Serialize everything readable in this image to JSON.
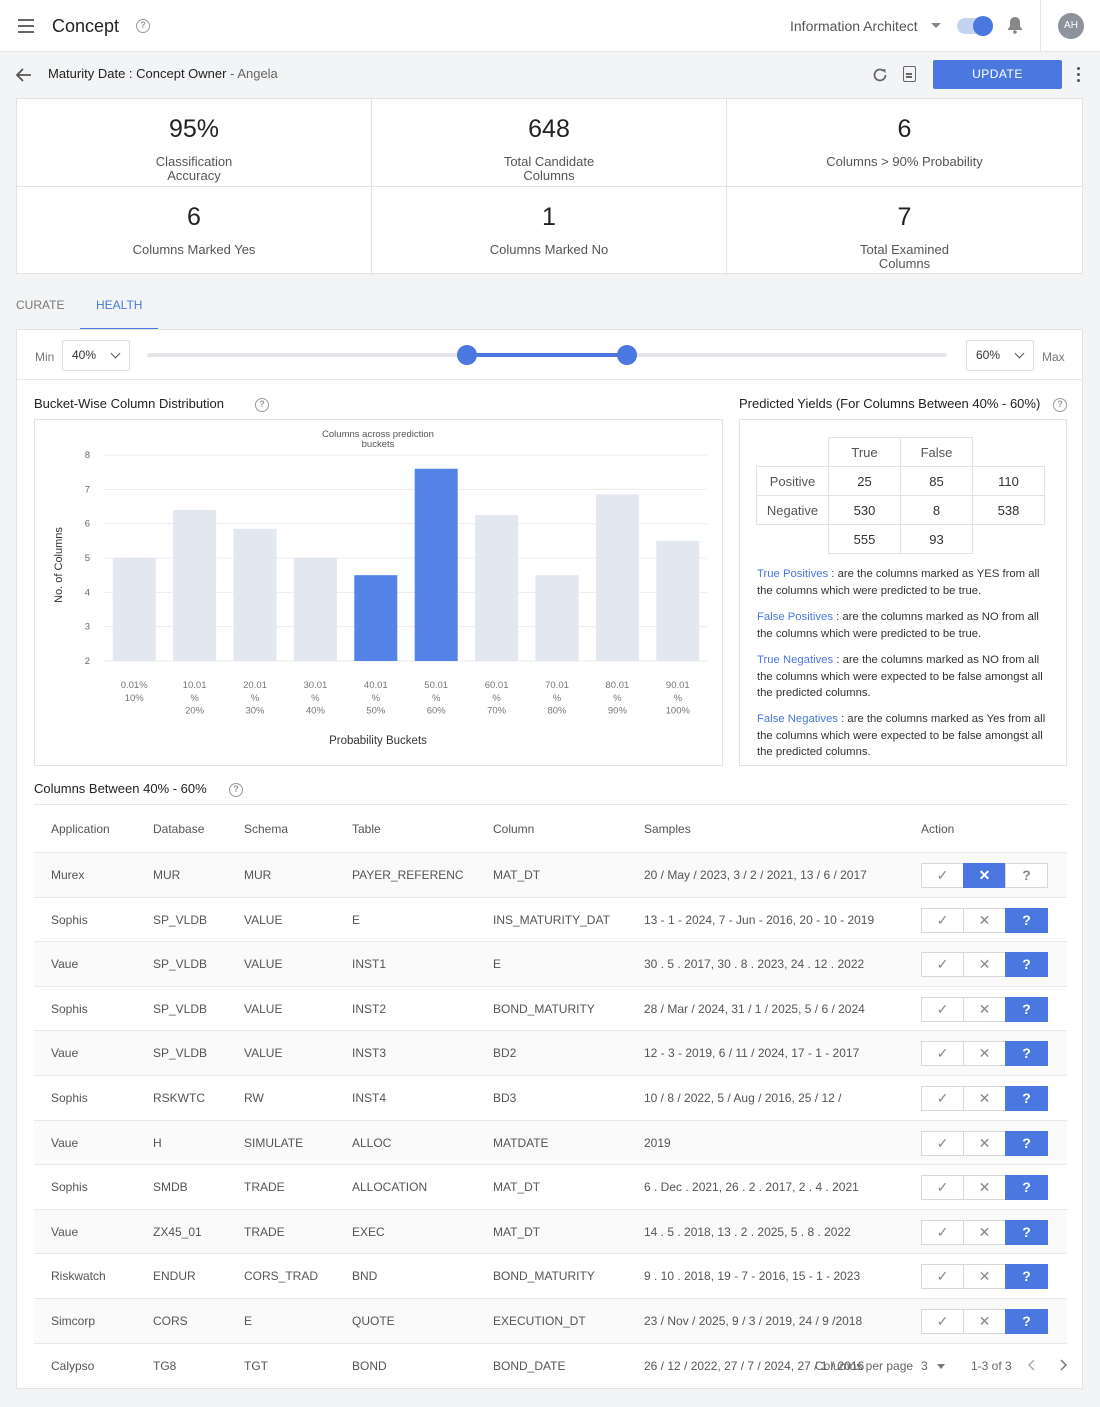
{
  "header": {
    "title": "Concept",
    "role": "Information Architect",
    "avatar_initials": "AH"
  },
  "subheader": {
    "breadcrumb_main": "Maturity Date : Concept Owner",
    "breadcrumb_sep": " - ",
    "breadcrumb_owner": "Angela",
    "update_label": "UPDATE"
  },
  "stats": [
    {
      "value": "95%",
      "label": "Classification Accuracy"
    },
    {
      "value": "648",
      "label": "Total Candidate Columns"
    },
    {
      "value": "6",
      "label": "Columns > 90% Probability"
    },
    {
      "value": "6",
      "label": "Columns Marked Yes"
    },
    {
      "value": "1",
      "label": "Columns Marked No"
    },
    {
      "value": "7",
      "label": "Total Examined Columns"
    }
  ],
  "tabs": [
    {
      "label": "CURATE",
      "active": false
    },
    {
      "label": "HEALTH",
      "active": true
    }
  ],
  "range": {
    "min_label": "Min",
    "max_label": "Max",
    "min_value": "40%",
    "max_value": "60%",
    "min_fraction": 0.4,
    "max_fraction": 0.6,
    "accent": "#4a78e0"
  },
  "bucket_section": {
    "title": "Bucket-Wise Column Distribution"
  },
  "chart_data": {
    "type": "bar",
    "title": "Columns across prediction buckets",
    "xlabel": "Probability Buckets",
    "ylabel": "No. of Columns",
    "ylim": [
      2,
      8
    ],
    "yticks": [
      2,
      3,
      4,
      5,
      6,
      7,
      8
    ],
    "grid": true,
    "categories": [
      [
        "0.01%",
        "10%"
      ],
      [
        "10.01",
        "%",
        "20%"
      ],
      [
        "20.01",
        "%",
        "30%"
      ],
      [
        "30.01",
        "%",
        "40%"
      ],
      [
        "40.01",
        "%",
        "50%"
      ],
      [
        "50.01",
        "%",
        "60%"
      ],
      [
        "60.01",
        "%",
        "70%"
      ],
      [
        "70.01",
        "%",
        "80%"
      ],
      [
        "80.01",
        "%",
        "90%"
      ],
      [
        "90.01",
        "%",
        "100%"
      ]
    ],
    "values": [
      5,
      6.4,
      5.85,
      5,
      4.5,
      7.6,
      6.25,
      4.5,
      6.85,
      5.5
    ],
    "highlighted": [
      false,
      false,
      false,
      false,
      true,
      true,
      false,
      false,
      false,
      false
    ],
    "colors": {
      "normal": "#e3e7ef",
      "highlight": "#5383e6"
    }
  },
  "yields": {
    "title": "Predicted Yields (For Columns Between 40% - 60%)",
    "col_headers": [
      "True",
      "False"
    ],
    "rows": [
      {
        "label": "Positive",
        "values": [
          "25",
          "85",
          "110"
        ]
      },
      {
        "label": "Negative",
        "values": [
          "530",
          "8",
          "538"
        ]
      }
    ],
    "totals": [
      "555",
      "93"
    ],
    "definitions": [
      {
        "term": "True Positives",
        "text": " : are the columns marked as YES from all the columns which were predicted to be true."
      },
      {
        "term": "False Positives",
        "text": " : are the columns marked as NO from all the columns which were predicted to be true."
      },
      {
        "term": "True Negatives",
        "text": " : are the columns marked as NO from all the columns which were expected to be false amongst all the predicted columns."
      },
      {
        "term": "False Negatives",
        "text": " : are the columns marked as Yes from all the columns which were expected to be false amongst all the predicted columns."
      }
    ]
  },
  "columns_table": {
    "title": "Columns Between 40% - 60%",
    "headers": [
      "Application",
      "Database",
      "Schema",
      "Table",
      "Column",
      "Samples",
      "Action"
    ],
    "rows": [
      {
        "cells": [
          "Murex",
          "MUR",
          "MUR",
          "PAYER_REFERENC",
          "MAT_DT",
          "20 / May / 2023, 3 / 2 / 2021, 13 / 6 / 2017"
        ],
        "state": "no"
      },
      {
        "cells": [
          "Sophis",
          "SP_VLDB",
          "VALUE",
          "E",
          "INS_MATURITY_DAT",
          "13 - 1 - 2024, 7 - Jun - 2016, 20 - 10 - 2019"
        ],
        "state": "unknown"
      },
      {
        "cells": [
          "Vaue",
          "SP_VLDB",
          "VALUE",
          "INST1",
          "E",
          "30 . 5 . 2017, 30 . 8 . 2023, 24 . 12 . 2022"
        ],
        "state": "unknown"
      },
      {
        "cells": [
          "Sophis",
          "SP_VLDB",
          "VALUE",
          "INST2",
          "BOND_MATURITY",
          "28 / Mar / 2024, 31 / 1 / 2025, 5 / 6 / 2024"
        ],
        "state": "unknown"
      },
      {
        "cells": [
          "Vaue",
          "SP_VLDB",
          "VALUE",
          "INST3",
          "BD2",
          "12 - 3 - 2019, 6 / 11 / 2024, 17 - 1 - 2017"
        ],
        "state": "unknown"
      },
      {
        "cells": [
          "Sophis",
          "RSKWTC",
          "RW",
          "INST4",
          "BD3",
          "10 / 8 / 2022, 5 / Aug / 2016, 25 / 12 /"
        ],
        "state": "unknown"
      },
      {
        "cells": [
          "Vaue",
          "H",
          "SIMULATE",
          "ALLOC",
          "MATDATE",
          "2019"
        ],
        "state": "unknown"
      },
      {
        "cells": [
          "Sophis",
          "SMDB",
          "TRADE",
          "ALLOCATION",
          "MAT_DT",
          "6 . Dec . 2021, 26 . 2 . 2017, 2 . 4 . 2021"
        ],
        "state": "unknown"
      },
      {
        "cells": [
          "Vaue",
          "ZX45_01",
          "TRADE",
          "EXEC",
          "MAT_DT",
          "14 . 5 . 2018, 13 . 2 . 2025, 5 . 8 . 2022"
        ],
        "state": "unknown"
      },
      {
        "cells": [
          "Riskwatch",
          "ENDUR",
          "CORS_TRAD",
          "BND",
          "BOND_MATURITY",
          "9 . 10 . 2018, 19 - 7 - 2016, 15 - 1 - 2023"
        ],
        "state": "unknown"
      },
      {
        "cells": [
          "Simcorp",
          "CORS",
          "E",
          "QUOTE",
          "EXECUTION_DT",
          "23 / Nov / 2025, 9 / 3 / 2019, 24 / 9 /2018"
        ],
        "state": "unknown"
      },
      {
        "cells": [
          "Calypso",
          "TG8",
          "TGT",
          "BOND",
          "BOND_DATE",
          "26 / 12 / 2022, 27 / 7 / 2024, 27 / 1 / 2016"
        ],
        "state": "none"
      }
    ]
  },
  "pagination": {
    "per_page_label": "Columns per page",
    "per_page": "3",
    "range": "1-3 of 3"
  }
}
